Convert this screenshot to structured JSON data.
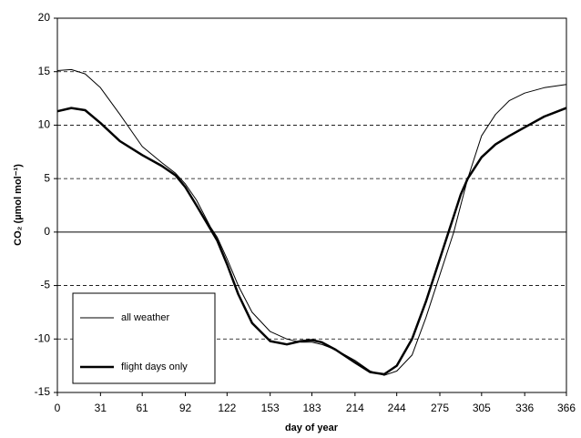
{
  "chart_data": {
    "type": "line",
    "xlabel": "day of year",
    "ylabel": "CO₂ (µmol mol⁻¹)",
    "x": [
      0,
      10,
      20,
      31,
      45,
      61,
      75,
      85,
      92,
      100,
      110,
      115,
      122,
      130,
      140,
      153,
      165,
      175,
      183,
      190,
      200,
      214,
      225,
      235,
      244,
      255,
      265,
      275,
      285,
      290,
      295,
      305,
      315,
      325,
      336,
      350,
      366
    ],
    "series": [
      {
        "name": "all weather",
        "color": "#000000",
        "width": 1,
        "values": [
          15.1,
          15.2,
          14.8,
          13.5,
          11,
          8,
          6.5,
          5.5,
          4.5,
          3,
          0.5,
          -0.5,
          -2.5,
          -5,
          -7.5,
          -9.3,
          -10,
          -10.3,
          -10.3,
          -10.5,
          -11,
          -12,
          -13,
          -13.4,
          -13,
          -11.5,
          -8,
          -4,
          0,
          2.5,
          5,
          9,
          11,
          12.3,
          13,
          13.5,
          13.8
        ]
      },
      {
        "name": "flight days only",
        "color": "#000000",
        "width": 2.5,
        "values": [
          11.3,
          11.6,
          11.4,
          10.2,
          8.5,
          7.2,
          6.2,
          5.3,
          4.2,
          2.5,
          0.3,
          -0.8,
          -3,
          -5.8,
          -8.5,
          -10.2,
          -10.5,
          -10.2,
          -10.1,
          -10.3,
          -11,
          -12.2,
          -13.1,
          -13.3,
          -12.5,
          -10,
          -6.5,
          -2.5,
          1.5,
          3.5,
          5,
          7,
          8.2,
          9,
          9.8,
          10.8,
          11.6
        ]
      }
    ],
    "xlim": [
      0,
      366
    ],
    "xticks": [
      0,
      31,
      61,
      92,
      122,
      153,
      183,
      214,
      244,
      275,
      305,
      336,
      366
    ],
    "ylim": [
      -15,
      20
    ],
    "yticks": [
      -15,
      -10,
      -5,
      0,
      5,
      10,
      15,
      20
    ],
    "grid": true,
    "legend": "lower left"
  }
}
